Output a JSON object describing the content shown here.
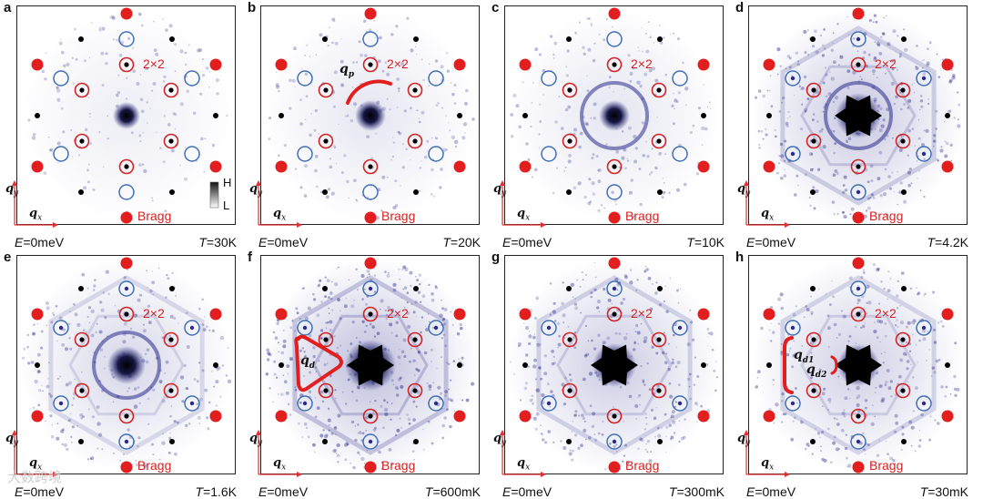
{
  "figure": {
    "panels": [
      {
        "letter": "a",
        "energy_label": "E",
        "energy_value": "=0meV",
        "temp_label": "T",
        "temp_value": "=30K",
        "label_2x2": "2×2",
        "label_bragg": "Bragg",
        "qx": "q",
        "qx_sub": "x",
        "qy": "q",
        "qy_sub": "y",
        "colorbar_high": "H",
        "colorbar_low": "L",
        "intensity": 0.25,
        "ring": false,
        "feature": "none"
      },
      {
        "letter": "b",
        "energy_label": "E",
        "energy_value": "=0meV",
        "temp_label": "T",
        "temp_value": "=20K",
        "label_2x2": "2×2",
        "label_bragg": "Bragg",
        "qx": "q",
        "qx_sub": "x",
        "qy": "q",
        "qy_sub": "y",
        "q_label": "q",
        "q_sub": "p",
        "intensity": 0.35,
        "ring": false,
        "feature": "arc"
      },
      {
        "letter": "c",
        "energy_label": "E",
        "energy_value": "=0meV",
        "temp_label": "T",
        "temp_value": "=10K",
        "label_2x2": "2×2",
        "label_bragg": "Bragg",
        "qx": "q",
        "qx_sub": "x",
        "qy": "q",
        "qy_sub": "y",
        "intensity": 0.35,
        "ring": true,
        "feature": "none"
      },
      {
        "letter": "d",
        "energy_label": "E",
        "energy_value": "=0meV",
        "temp_label": "T",
        "temp_value": "=4.2K",
        "label_2x2": "2×2",
        "label_bragg": "Bragg",
        "qx": "q",
        "qx_sub": "x",
        "qy": "q",
        "qy_sub": "y",
        "intensity": 0.75,
        "ring": true,
        "feature": "none"
      },
      {
        "letter": "e",
        "energy_label": "E",
        "energy_value": "=0meV",
        "temp_label": "T",
        "temp_value": "=1.6K",
        "label_2x2": "2×2",
        "label_bragg": "Bragg",
        "qx": "q",
        "qx_sub": "x",
        "qy": "q",
        "qy_sub": "y",
        "intensity": 0.55,
        "ring": true,
        "feature": "none"
      },
      {
        "letter": "f",
        "energy_label": "E",
        "energy_value": "=0meV",
        "temp_label": "T",
        "temp_value": "=600mK",
        "label_2x2": "2×2",
        "label_bragg": "Bragg",
        "qx": "q",
        "qx_sub": "x",
        "qy": "q",
        "qy_sub": "y",
        "q_label": "q",
        "q_sub": "d",
        "intensity": 0.9,
        "ring": false,
        "feature": "triangle"
      },
      {
        "letter": "g",
        "energy_label": "E",
        "energy_value": "=0meV",
        "temp_label": "T",
        "temp_value": "=300mK",
        "label_2x2": "2×2",
        "label_bragg": "Bragg",
        "qx": "q",
        "qx_sub": "x",
        "qy": "q",
        "qy_sub": "y",
        "intensity": 0.7,
        "ring": false,
        "feature": "none"
      },
      {
        "letter": "h",
        "energy_label": "E",
        "energy_value": "=0meV",
        "temp_label": "T",
        "temp_value": "=30mK",
        "label_2x2": "2×2",
        "label_bragg": "Bragg",
        "qx": "q",
        "qx_sub": "x",
        "qy": "q",
        "qy_sub": "y",
        "q_label": "q",
        "q_sub": "d1",
        "q_label2": "q",
        "q_sub2": "d2",
        "intensity": 0.65,
        "ring": false,
        "feature": "brackets"
      }
    ],
    "colors": {
      "bragg": "#e21e1e",
      "ring_2x2": "#d42222",
      "ring_blue": "#3f6fb8",
      "density": "#2a2a8c",
      "core": "#000000",
      "axis_arrow": "#e03030"
    },
    "watermark": "大数跨境"
  }
}
